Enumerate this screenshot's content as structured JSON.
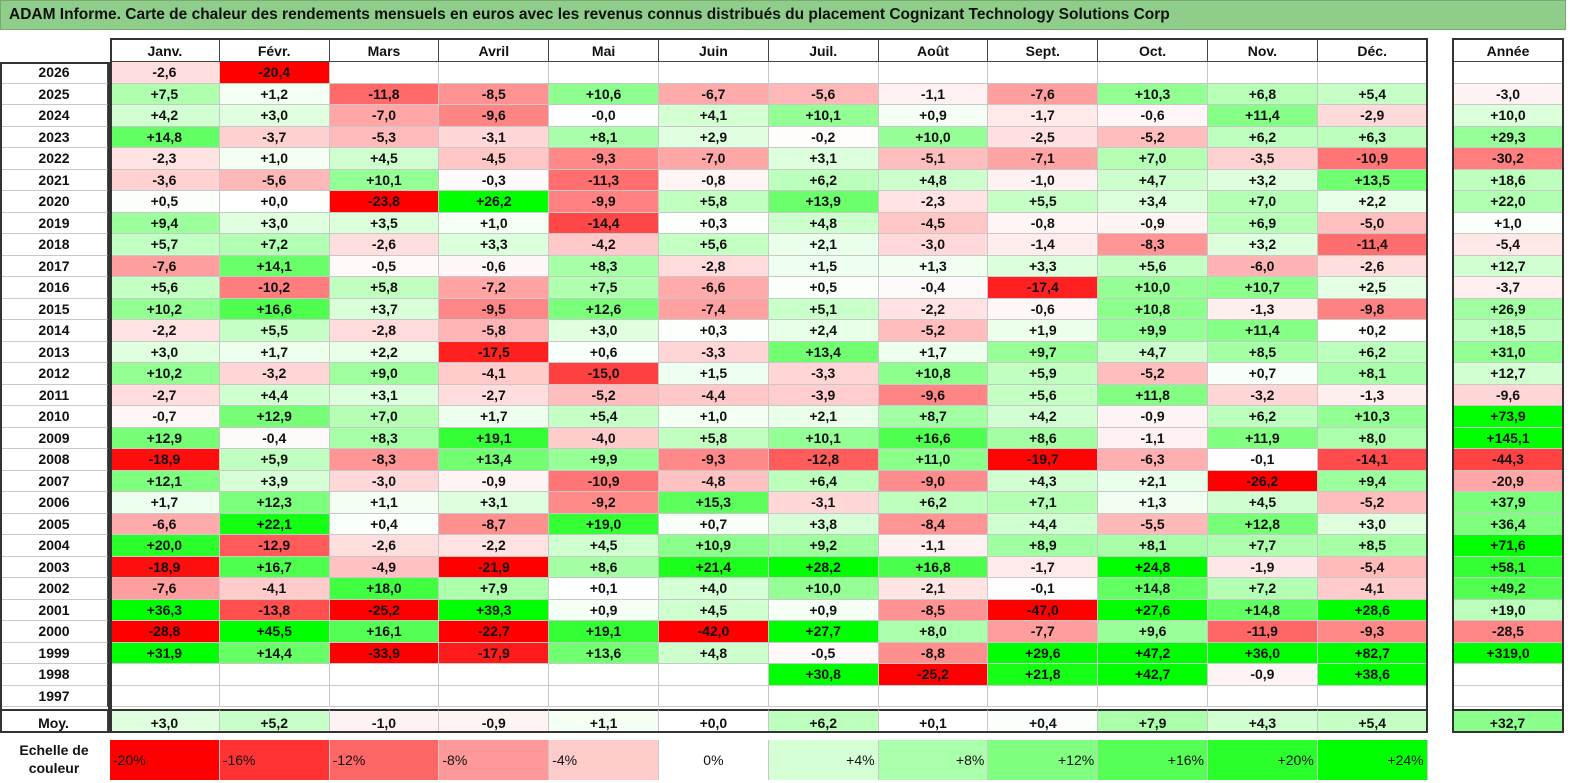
{
  "title": "ADAM Informe. Carte de chaleur des rendements mensuels en euros avec les revenus connus distribués du placement Cognizant Technology Solutions Corp",
  "chart_data": {
    "type": "heatmap",
    "columns": [
      "Janv.",
      "Févr.",
      "Mars",
      "Avril",
      "Mai",
      "Juin",
      "Juil.",
      "Août",
      "Sept.",
      "Oct.",
      "Nov.",
      "Déc."
    ],
    "year_column": "Année",
    "rows": [
      {
        "label": "2026",
        "values": [
          "-2,6",
          "-20,4",
          "",
          "",
          "",
          "",
          "",
          "",
          "",
          "",
          "",
          ""
        ],
        "year": ""
      },
      {
        "label": "2025",
        "values": [
          "+7,5",
          "+1,2",
          "-11,8",
          "-8,5",
          "+10,6",
          "-6,7",
          "-5,6",
          "-1,1",
          "-7,6",
          "+10,3",
          "+6,8",
          "+5,4"
        ],
        "year": "-3,0"
      },
      {
        "label": "2024",
        "values": [
          "+4,2",
          "+3,0",
          "-7,0",
          "-9,6",
          "-0,0",
          "+4,1",
          "+10,1",
          "+0,9",
          "-1,7",
          "-0,6",
          "+11,4",
          "-2,9"
        ],
        "year": "+10,0"
      },
      {
        "label": "2023",
        "values": [
          "+14,8",
          "-3,7",
          "-5,3",
          "-3,1",
          "+8,1",
          "+2,9",
          "-0,2",
          "+10,0",
          "-2,5",
          "-5,2",
          "+6,2",
          "+6,3"
        ],
        "year": "+29,3"
      },
      {
        "label": "2022",
        "values": [
          "-2,3",
          "+1,0",
          "+4,5",
          "-4,5",
          "-9,3",
          "-7,0",
          "+3,1",
          "-5,1",
          "-7,1",
          "+7,0",
          "-3,5",
          "-10,9"
        ],
        "year": "-30,2"
      },
      {
        "label": "2021",
        "values": [
          "-3,6",
          "-5,6",
          "+10,1",
          "-0,3",
          "-11,3",
          "-0,8",
          "+6,2",
          "+4,8",
          "-1,0",
          "+4,7",
          "+3,2",
          "+13,5"
        ],
        "year": "+18,6"
      },
      {
        "label": "2020",
        "values": [
          "+0,5",
          "+0,0",
          "-23,8",
          "+26,2",
          "-9,9",
          "+5,8",
          "+13,9",
          "-2,3",
          "+5,5",
          "+3,4",
          "+7,0",
          "+2,2"
        ],
        "year": "+22,0"
      },
      {
        "label": "2019",
        "values": [
          "+9,4",
          "+3,0",
          "+3,5",
          "+1,0",
          "-14,4",
          "+0,3",
          "+4,8",
          "-4,5",
          "-0,8",
          "-0,9",
          "+6,9",
          "-5,0"
        ],
        "year": "+1,0"
      },
      {
        "label": "2018",
        "values": [
          "+5,7",
          "+7,2",
          "-2,6",
          "+3,3",
          "-4,2",
          "+5,6",
          "+2,1",
          "-3,0",
          "-1,4",
          "-8,3",
          "+3,2",
          "-11,4"
        ],
        "year": "-5,4"
      },
      {
        "label": "2017",
        "values": [
          "-7,6",
          "+14,1",
          "-0,5",
          "-0,6",
          "+8,3",
          "-2,8",
          "+1,5",
          "+1,3",
          "+3,3",
          "+5,6",
          "-6,0",
          "-2,6"
        ],
        "year": "+12,7"
      },
      {
        "label": "2016",
        "values": [
          "+5,6",
          "-10,2",
          "+5,8",
          "-7,2",
          "+7,5",
          "-6,6",
          "+0,5",
          "-0,4",
          "-17,4",
          "+10,0",
          "+10,7",
          "+2,5"
        ],
        "year": "-3,7"
      },
      {
        "label": "2015",
        "values": [
          "+10,2",
          "+16,6",
          "+3,7",
          "-9,5",
          "+12,6",
          "-7,4",
          "+5,1",
          "-2,2",
          "-0,6",
          "+10,8",
          "-1,3",
          "-9,8"
        ],
        "year": "+26,9"
      },
      {
        "label": "2014",
        "values": [
          "-2,2",
          "+5,5",
          "-2,8",
          "-5,8",
          "+3,0",
          "+0,3",
          "+2,4",
          "-5,2",
          "+1,9",
          "+9,9",
          "+11,4",
          "+0,2"
        ],
        "year": "+18,5"
      },
      {
        "label": "2013",
        "values": [
          "+3,0",
          "+1,7",
          "+2,2",
          "-17,5",
          "+0,6",
          "-3,3",
          "+13,4",
          "+1,7",
          "+9,7",
          "+4,7",
          "+8,5",
          "+6,2"
        ],
        "year": "+31,0"
      },
      {
        "label": "2012",
        "values": [
          "+10,2",
          "-3,2",
          "+9,0",
          "-4,1",
          "-15,0",
          "+1,5",
          "-3,3",
          "+10,8",
          "+5,9",
          "-5,2",
          "+0,7",
          "+8,1"
        ],
        "year": "+12,7"
      },
      {
        "label": "2011",
        "values": [
          "-2,7",
          "+4,4",
          "+3,1",
          "-2,7",
          "-5,2",
          "-4,4",
          "-3,9",
          "-9,6",
          "+5,6",
          "+11,8",
          "-3,2",
          "-1,3"
        ],
        "year": "-9,6"
      },
      {
        "label": "2010",
        "values": [
          "-0,7",
          "+12,9",
          "+7,0",
          "+1,7",
          "+5,4",
          "+1,0",
          "+2,1",
          "+8,7",
          "+4,2",
          "-0,9",
          "+6,2",
          "+10,3"
        ],
        "year": "+73,9"
      },
      {
        "label": "2009",
        "values": [
          "+12,9",
          "-0,4",
          "+8,3",
          "+19,1",
          "-4,0",
          "+5,8",
          "+10,1",
          "+16,6",
          "+8,6",
          "-1,1",
          "+11,9",
          "+8,0"
        ],
        "year": "+145,1"
      },
      {
        "label": "2008",
        "values": [
          "-18,9",
          "+5,9",
          "-8,3",
          "+13,4",
          "+9,9",
          "-9,3",
          "-12,8",
          "+11,0",
          "-19,7",
          "-6,3",
          "-0,1",
          "-14,1"
        ],
        "year": "-44,3"
      },
      {
        "label": "2007",
        "values": [
          "+12,1",
          "+3,9",
          "-3,0",
          "-0,9",
          "-10,9",
          "-4,8",
          "+6,4",
          "-9,0",
          "+4,3",
          "+2,1",
          "-26,2",
          "+9,4"
        ],
        "year": "-20,9"
      },
      {
        "label": "2006",
        "values": [
          "+1,7",
          "+12,3",
          "+1,1",
          "+3,1",
          "-9,2",
          "+15,3",
          "-3,1",
          "+6,2",
          "+7,1",
          "+1,3",
          "+4,5",
          "-5,2"
        ],
        "year": "+37,9"
      },
      {
        "label": "2005",
        "values": [
          "-6,6",
          "+22,1",
          "+0,4",
          "-8,7",
          "+19,0",
          "+0,7",
          "+3,8",
          "-8,4",
          "+4,4",
          "-5,5",
          "+12,8",
          "+3,0"
        ],
        "year": "+36,4"
      },
      {
        "label": "2004",
        "values": [
          "+20,0",
          "-12,9",
          "-2,6",
          "-2,2",
          "+4,5",
          "+10,9",
          "+9,2",
          "-1,1",
          "+8,9",
          "+8,1",
          "+7,7",
          "+8,5"
        ],
        "year": "+71,6"
      },
      {
        "label": "2003",
        "values": [
          "-18,9",
          "+16,7",
          "-4,9",
          "-21,9",
          "+8,6",
          "+21,4",
          "+28,2",
          "+16,8",
          "-1,7",
          "+24,8",
          "-1,9",
          "-5,4"
        ],
        "year": "+58,1"
      },
      {
        "label": "2002",
        "values": [
          "-7,6",
          "-4,1",
          "+18,0",
          "+7,9",
          "+0,1",
          "+4,0",
          "+10,0",
          "-2,1",
          "-0,1",
          "+14,8",
          "+7,2",
          "-4,1"
        ],
        "year": "+49,2"
      },
      {
        "label": "2001",
        "values": [
          "+36,3",
          "-13,8",
          "-25,2",
          "+39,3",
          "+0,9",
          "+4,5",
          "+0,9",
          "-8,5",
          "-47,0",
          "+27,6",
          "+14,8",
          "+28,6"
        ],
        "year": "+19,0"
      },
      {
        "label": "2000",
        "values": [
          "-28,8",
          "+45,5",
          "+16,1",
          "-22,7",
          "+19,1",
          "-42,0",
          "+27,7",
          "+8,0",
          "-7,7",
          "+9,6",
          "-11,9",
          "-9,3"
        ],
        "year": "-28,5"
      },
      {
        "label": "1999",
        "values": [
          "+31,9",
          "+14,4",
          "-33,9",
          "-17,9",
          "+13,6",
          "+4,8",
          "-0,5",
          "-8,8",
          "+29,6",
          "+47,2",
          "+36,0",
          "+82,7"
        ],
        "year": "+319,0"
      },
      {
        "label": "1998",
        "values": [
          "",
          "",
          "",
          "",
          "",
          "",
          "+30,8",
          "-25,2",
          "+21,8",
          "+42,7",
          "-0,9",
          "+38,6"
        ],
        "year": ""
      },
      {
        "label": "1997",
        "values": [
          "",
          "",
          "",
          "",
          "",
          "",
          "",
          "",
          "",
          "",
          "",
          ""
        ],
        "year": ""
      }
    ],
    "average": {
      "label": "Moy.",
      "values": [
        "+3,0",
        "+5,2",
        "-1,0",
        "-0,9",
        "+1,1",
        "+0,0",
        "+6,2",
        "+0,1",
        "+0,4",
        "+7,9",
        "+4,3",
        "+5,4"
      ],
      "year": "+32,7"
    },
    "scale": {
      "label": "Echelle de couleur",
      "steps": [
        "-20%",
        "-16%",
        "-12%",
        "-8%",
        "-4%",
        "0%",
        "+4%",
        "+8%",
        "+12%",
        "+16%",
        "+20%",
        "+24%"
      ]
    }
  }
}
